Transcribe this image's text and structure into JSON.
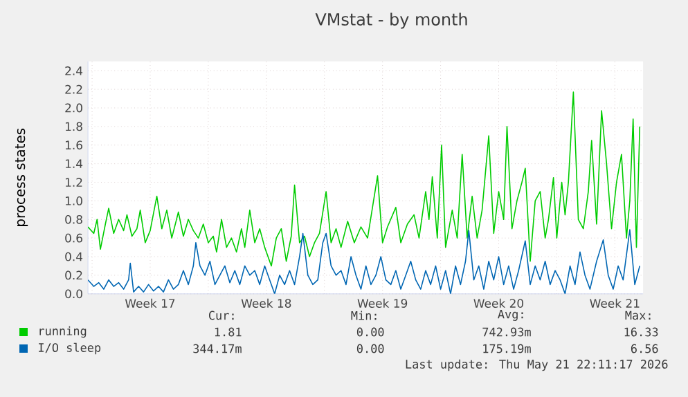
{
  "chart_data": {
    "type": "line",
    "title": "VMstat - by month",
    "ylabel": "process states",
    "xlim": [
      "2026-04-19T18:00",
      "2026-05-23T04:48"
    ],
    "ylim": [
      0,
      2.5
    ],
    "xticks": [
      {
        "value": "2026-04-20",
        "label": null
      },
      {
        "value": "2026-04-23T12:00",
        "label": "Week 17"
      },
      {
        "value": "2026-04-27",
        "label": null
      },
      {
        "value": "2026-04-30T12:00",
        "label": "Week 18"
      },
      {
        "value": "2026-05-04",
        "label": null
      },
      {
        "value": "2026-05-07T12:00",
        "label": "Week 19"
      },
      {
        "value": "2026-05-11",
        "label": null
      },
      {
        "value": "2026-05-14T12:00",
        "label": "Week 20"
      },
      {
        "value": "2026-05-18",
        "label": null
      },
      {
        "value": "2026-05-21T12:00",
        "label": "Week 21"
      }
    ],
    "yticks": [
      {
        "value": 0,
        "label": "0.0"
      },
      0.2,
      0.4,
      0.6,
      0.8,
      {
        "value": 1,
        "label": "1.0"
      },
      1.2,
      1.4,
      1.6,
      1.8,
      {
        "value": 2,
        "label": "2.0"
      },
      2.2,
      2.4
    ],
    "grid": true,
    "legend": "bottom",
    "marker": "none",
    "line_style": "solid",
    "series": [
      {
        "name": "running",
        "color": "#00cc00",
        "x": [
          "2026-04-19T18:00",
          "2026-04-20T02:24",
          "2026-04-20T07:12",
          "2026-04-20T12:00",
          "2026-04-20T19:12",
          "2026-04-21T00:00",
          "2026-04-21T07:12",
          "2026-04-21T14:24",
          "2026-04-21T21:36",
          "2026-04-22T02:24",
          "2026-04-22T09:36",
          "2026-04-22T16:48",
          "2026-04-22T21:36",
          "2026-04-23T04:48",
          "2026-04-23T12:00",
          "2026-04-23T21:36",
          "2026-04-24T04:48",
          "2026-04-24T12:00",
          "2026-04-24T19:12",
          "2026-04-25T04:48",
          "2026-04-25T12:00",
          "2026-04-25T19:12",
          "2026-04-26T02:24",
          "2026-04-26T09:36",
          "2026-04-26T16:48",
          "2026-04-27T00:00",
          "2026-04-27T07:12",
          "2026-04-27T12:00",
          "2026-04-27T19:12",
          "2026-04-28T02:24",
          "2026-04-28T09:36",
          "2026-04-28T16:48",
          "2026-04-29T00:00",
          "2026-04-29T04:48",
          "2026-04-29T12:00",
          "2026-04-29T19:12",
          "2026-04-30T02:24",
          "2026-04-30T09:36",
          "2026-04-30T19:12",
          "2026-05-01T02:24",
          "2026-05-01T09:36",
          "2026-05-01T16:48",
          "2026-05-02T00:00",
          "2026-05-02T04:48",
          "2026-05-02T12:00",
          "2026-05-02T19:12",
          "2026-05-03T02:24",
          "2026-05-03T09:36",
          "2026-05-03T16:48",
          "2026-05-04T02:24",
          "2026-05-04T09:36",
          "2026-05-04T16:48",
          "2026-05-05T00:00",
          "2026-05-05T09:36",
          "2026-05-05T19:12",
          "2026-05-06T04:48",
          "2026-05-06T14:24",
          "2026-05-07T04:48",
          "2026-05-07T12:00",
          "2026-05-07T19:12",
          "2026-05-08T07:12",
          "2026-05-08T14:24",
          "2026-05-09T00:00",
          "2026-05-09T09:36",
          "2026-05-09T16:48",
          "2026-05-10T02:24",
          "2026-05-10T07:12",
          "2026-05-10T12:00",
          "2026-05-10T19:12",
          "2026-05-11T01:26",
          "2026-05-11T07:12",
          "2026-05-11T16:48",
          "2026-05-12T00:00",
          "2026-05-12T07:12",
          "2026-05-12T14:24",
          "2026-05-12T21:36",
          "2026-05-13T04:48",
          "2026-05-13T12:00",
          "2026-05-13T21:36",
          "2026-05-14T04:48",
          "2026-05-14T12:00",
          "2026-05-14T19:12",
          "2026-05-15T00:00",
          "2026-05-15T07:12",
          "2026-05-15T14:24",
          "2026-05-15T21:36",
          "2026-05-16T02:24",
          "2026-05-16T09:36",
          "2026-05-16T16:48",
          "2026-05-17T00:00",
          "2026-05-17T07:12",
          "2026-05-17T12:00",
          "2026-05-17T19:12",
          "2026-05-18T00:00",
          "2026-05-18T07:12",
          "2026-05-18T12:00",
          "2026-05-18T16:48",
          "2026-05-19T00:00",
          "2026-05-19T07:12",
          "2026-05-19T14:24",
          "2026-05-19T21:36",
          "2026-05-20T02:24",
          "2026-05-20T09:36",
          "2026-05-20T16:48",
          "2026-05-21T00:00",
          "2026-05-21T07:12",
          "2026-05-21T14:24",
          "2026-05-21T21:36",
          "2026-05-22T04:48",
          "2026-05-22T09:36",
          "2026-05-22T14:24",
          "2026-05-22T19:12",
          "2026-05-23T00:00"
        ],
        "values": [
          0.72,
          0.65,
          0.8,
          0.48,
          0.75,
          0.92,
          0.65,
          0.8,
          0.68,
          0.85,
          0.62,
          0.7,
          0.9,
          0.55,
          0.68,
          1.05,
          0.7,
          0.9,
          0.6,
          0.88,
          0.62,
          0.8,
          0.68,
          0.6,
          0.75,
          0.55,
          0.62,
          0.45,
          0.8,
          0.5,
          0.6,
          0.45,
          0.7,
          0.5,
          0.9,
          0.55,
          0.7,
          0.5,
          0.3,
          0.6,
          0.7,
          0.35,
          0.62,
          1.17,
          0.55,
          0.62,
          0.4,
          0.55,
          0.65,
          1.1,
          0.55,
          0.7,
          0.5,
          0.78,
          0.55,
          0.72,
          0.6,
          1.27,
          0.55,
          0.72,
          0.93,
          0.55,
          0.75,
          0.85,
          0.6,
          1.1,
          0.8,
          1.26,
          0.6,
          1.6,
          0.5,
          0.9,
          0.6,
          1.5,
          0.6,
          1.05,
          0.6,
          0.9,
          1.7,
          0.65,
          1.1,
          0.8,
          1.8,
          0.7,
          1.0,
          1.2,
          1.35,
          0.35,
          1.0,
          1.1,
          0.6,
          0.8,
          1.25,
          0.6,
          1.2,
          0.85,
          1.2,
          2.17,
          0.8,
          0.7,
          1.1,
          1.65,
          0.75,
          1.97,
          1.4,
          0.7,
          1.2,
          1.5,
          0.6,
          1.0,
          1.88,
          0.5,
          1.8
        ]
      },
      {
        "name": "I/O sleep",
        "color": "#0066b3",
        "x": [
          "2026-04-19T18:00",
          "2026-04-20T02:24",
          "2026-04-20T09:36",
          "2026-04-20T16:48",
          "2026-04-21T00:00",
          "2026-04-21T07:12",
          "2026-04-21T14:24",
          "2026-04-21T21:36",
          "2026-04-22T04:48",
          "2026-04-22T07:12",
          "2026-04-22T12:00",
          "2026-04-22T19:12",
          "2026-04-23T02:24",
          "2026-04-23T09:36",
          "2026-04-23T16:48",
          "2026-04-24T00:00",
          "2026-04-24T07:12",
          "2026-04-24T14:24",
          "2026-04-24T21:36",
          "2026-04-25T04:48",
          "2026-04-25T12:00",
          "2026-04-25T19:12",
          "2026-04-26T02:24",
          "2026-04-26T06:00",
          "2026-04-26T12:00",
          "2026-04-26T19:12",
          "2026-04-27T02:24",
          "2026-04-27T09:36",
          "2026-04-27T16:48",
          "2026-04-28T00:00",
          "2026-04-28T07:12",
          "2026-04-28T14:24",
          "2026-04-28T21:36",
          "2026-04-29T04:48",
          "2026-04-29T12:00",
          "2026-04-29T19:12",
          "2026-04-30T02:24",
          "2026-04-30T09:36",
          "2026-04-30T16:48",
          "2026-05-01T00:00",
          "2026-05-01T07:12",
          "2026-05-01T14:24",
          "2026-05-01T21:36",
          "2026-05-02T04:48",
          "2026-05-02T12:00",
          "2026-05-02T16:48",
          "2026-05-03T00:00",
          "2026-05-03T07:12",
          "2026-05-03T14:24",
          "2026-05-03T21:36",
          "2026-05-04T02:24",
          "2026-05-04T09:36",
          "2026-05-04T16:48",
          "2026-05-05T00:00",
          "2026-05-05T07:12",
          "2026-05-05T14:24",
          "2026-05-05T21:36",
          "2026-05-06T04:48",
          "2026-05-06T12:00",
          "2026-05-06T19:12",
          "2026-05-07T02:24",
          "2026-05-07T09:36",
          "2026-05-07T16:48",
          "2026-05-08T00:00",
          "2026-05-08T07:12",
          "2026-05-08T14:24",
          "2026-05-08T21:36",
          "2026-05-09T04:48",
          "2026-05-09T12:00",
          "2026-05-09T19:12",
          "2026-05-10T02:24",
          "2026-05-10T09:36",
          "2026-05-10T16:48",
          "2026-05-11T00:00",
          "2026-05-11T07:12",
          "2026-05-11T14:24",
          "2026-05-11T21:36",
          "2026-05-12T04:48",
          "2026-05-12T12:00",
          "2026-05-12T16:48",
          "2026-05-13T00:00",
          "2026-05-13T07:12",
          "2026-05-13T14:24",
          "2026-05-13T21:36",
          "2026-05-14T04:48",
          "2026-05-14T12:00",
          "2026-05-14T19:12",
          "2026-05-15T02:24",
          "2026-05-15T09:36",
          "2026-05-15T16:48",
          "2026-05-16T02:24",
          "2026-05-16T09:36",
          "2026-05-16T16:48",
          "2026-05-17T00:00",
          "2026-05-17T07:12",
          "2026-05-17T14:24",
          "2026-05-17T21:36",
          "2026-05-18T04:48",
          "2026-05-18T12:00",
          "2026-05-18T19:12",
          "2026-05-19T02:24",
          "2026-05-19T09:36",
          "2026-05-19T16:48",
          "2026-05-20T00:00",
          "2026-05-20T09:36",
          "2026-05-20T19:12",
          "2026-05-21T02:24",
          "2026-05-21T09:36",
          "2026-05-21T16:48",
          "2026-05-22T00:00",
          "2026-05-22T09:36",
          "2026-05-22T16:48",
          "2026-05-23T00:00"
        ],
        "values": [
          0.15,
          0.08,
          0.12,
          0.05,
          0.15,
          0.08,
          0.12,
          0.05,
          0.15,
          0.33,
          0.02,
          0.08,
          0.02,
          0.1,
          0.03,
          0.08,
          0.02,
          0.15,
          0.05,
          0.1,
          0.25,
          0.1,
          0.3,
          0.55,
          0.3,
          0.2,
          0.35,
          0.1,
          0.2,
          0.3,
          0.12,
          0.25,
          0.1,
          0.3,
          0.2,
          0.25,
          0.1,
          0.3,
          0.15,
          0.0,
          0.2,
          0.1,
          0.25,
          0.1,
          0.4,
          0.65,
          0.2,
          0.1,
          0.15,
          0.55,
          0.65,
          0.3,
          0.2,
          0.25,
          0.1,
          0.4,
          0.2,
          0.05,
          0.3,
          0.1,
          0.2,
          0.4,
          0.15,
          0.1,
          0.25,
          0.05,
          0.2,
          0.35,
          0.15,
          0.05,
          0.25,
          0.1,
          0.3,
          0.05,
          0.25,
          0.0,
          0.3,
          0.1,
          0.35,
          0.68,
          0.15,
          0.3,
          0.05,
          0.35,
          0.15,
          0.4,
          0.1,
          0.3,
          0.05,
          0.25,
          0.57,
          0.1,
          0.3,
          0.15,
          0.35,
          0.1,
          0.25,
          0.15,
          0.0,
          0.3,
          0.1,
          0.45,
          0.2,
          0.05,
          0.35,
          0.58,
          0.2,
          0.05,
          0.3,
          0.15,
          0.69,
          0.1,
          0.3
        ]
      }
    ],
    "annotations": [
      "Cur:",
      "Min:",
      "Avg:",
      "Max:",
      "1.81",
      "0.00",
      "742.93m",
      "16.33",
      "344.17m",
      "0.00",
      "175.19m",
      "6.56",
      "Last update: Thu May 21 22:11:17 2026"
    ]
  }
}
